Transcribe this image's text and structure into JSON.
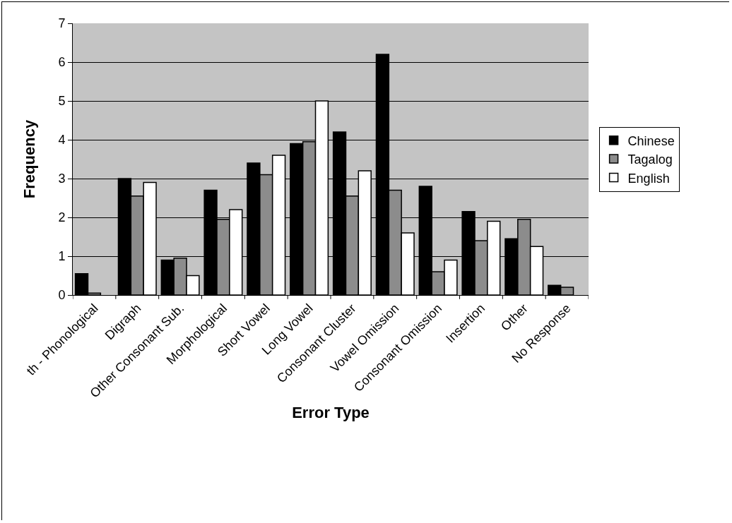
{
  "chart_data": {
    "type": "bar",
    "xlabel": "Error Type",
    "ylabel": "Frequency",
    "categories": [
      "th - Phonological",
      "Digraph",
      "Other Consonant Sub.",
      "Morphological",
      "Short Vowel",
      "Long Vowel",
      "Consonant Cluster",
      "Vowel Omission",
      "Consonant Omission",
      "Insertion",
      "Other",
      "No Response"
    ],
    "series": [
      {
        "name": "Chinese",
        "color": "#000000",
        "values": [
          0.55,
          3.0,
          0.9,
          2.7,
          3.4,
          3.9,
          4.2,
          6.2,
          2.8,
          2.15,
          1.45,
          0.25
        ]
      },
      {
        "name": "Tagalog",
        "color": "#8c8c8c",
        "values": [
          0.05,
          2.55,
          0.95,
          1.95,
          3.1,
          3.95,
          2.55,
          2.7,
          0.6,
          1.4,
          1.95,
          0.2
        ]
      },
      {
        "name": "English",
        "color": "#ffffff",
        "values": [
          null,
          2.9,
          0.5,
          2.2,
          3.6,
          5.0,
          3.2,
          1.6,
          0.9,
          1.9,
          1.25,
          null
        ]
      }
    ],
    "ylim": [
      0,
      7
    ],
    "yticks": [
      0,
      1,
      2,
      3,
      4,
      5,
      6,
      7
    ],
    "grid": "y",
    "legend": "right"
  }
}
